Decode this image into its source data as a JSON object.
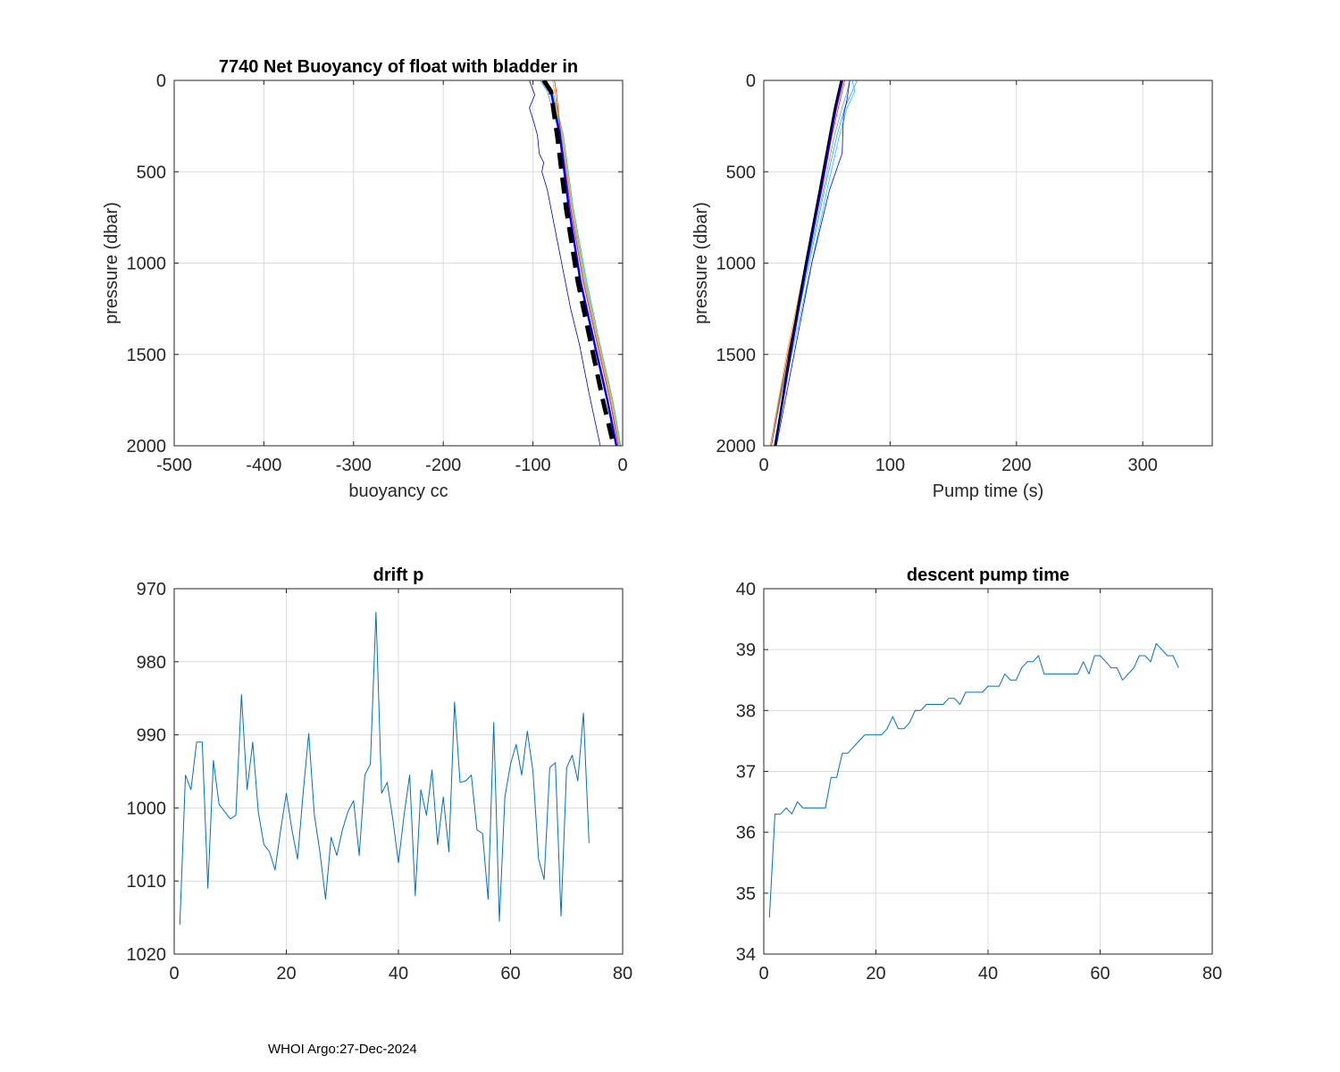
{
  "footer": "WHOI Argo:27-Dec-2024",
  "chart_data": [
    {
      "id": "buoyancy",
      "type": "line",
      "title": "7740 Net Buoyancy of float with bladder in",
      "xlabel": "buoyancy cc",
      "ylabel": "pressure (dbar)",
      "xlim": [
        -500,
        0
      ],
      "ylim": [
        0,
        2000
      ],
      "y_reversed": true,
      "xticks": [
        -500,
        -400,
        -300,
        -200,
        -100,
        0
      ],
      "yticks": [
        0,
        500,
        1000,
        1500,
        2000
      ],
      "grid": true,
      "series": [
        {
          "color": "#2e8b57",
          "width": 0.7,
          "x": [
            -452,
            -90,
            -86
          ],
          "y": [
            0,
            0,
            0
          ]
        },
        {
          "color": "#1e90ff",
          "width": 0.7,
          "x": [
            -92,
            -84,
            -70,
            -58,
            -44,
            -28,
            -14,
            -4
          ],
          "y": [
            0,
            60,
            300,
            700,
            1100,
            1450,
            1750,
            2000
          ]
        },
        {
          "color": "#00bfff",
          "width": 0.7,
          "x": [
            -88,
            -80,
            -68,
            -56,
            -42,
            -26,
            -12,
            -3
          ],
          "y": [
            0,
            60,
            300,
            700,
            1100,
            1450,
            1750,
            2000
          ]
        },
        {
          "color": "#20b2aa",
          "width": 0.7,
          "x": [
            -90,
            -78,
            -66,
            -55,
            -40,
            -25,
            -11,
            -2
          ],
          "y": [
            0,
            60,
            300,
            700,
            1100,
            1450,
            1750,
            2000
          ]
        },
        {
          "color": "#9acd32",
          "width": 0.7,
          "x": [
            -86,
            -79,
            -67,
            -56,
            -41,
            -26,
            -12,
            -3
          ],
          "y": [
            0,
            60,
            300,
            700,
            1100,
            1450,
            1750,
            2000
          ]
        },
        {
          "color": "#ff8c00",
          "width": 0.7,
          "x": [
            -78,
            -76,
            -68,
            -57,
            -43,
            -27,
            -13,
            -4
          ],
          "y": [
            0,
            60,
            300,
            700,
            1100,
            1450,
            1750,
            2000
          ]
        },
        {
          "color": "#ff0000",
          "width": 0.7,
          "x": [
            -76,
            -74,
            -69,
            -58,
            -44,
            -28,
            -14,
            -5
          ],
          "y": [
            0,
            60,
            300,
            700,
            1100,
            1450,
            1750,
            2000
          ]
        },
        {
          "color": "#0000ff",
          "width": 2.5,
          "x": [
            -86,
            -80,
            -70,
            -60,
            -47,
            -31,
            -17,
            -7
          ],
          "y": [
            0,
            60,
            300,
            700,
            1100,
            1450,
            1750,
            2000
          ]
        },
        {
          "color": "#0000cd",
          "width": 0.8,
          "x": [
            -104,
            -98,
            -104,
            -99,
            -95,
            -93,
            -88,
            -90,
            -84,
            -80,
            -72,
            -66,
            -58,
            -48,
            -38,
            -25
          ],
          "y": [
            0,
            80,
            150,
            230,
            300,
            400,
            450,
            500,
            600,
            700,
            900,
            1050,
            1250,
            1450,
            1700,
            2000
          ]
        },
        {
          "color": "#000000",
          "width": 5,
          "dash": "18,10",
          "x": [
            -88,
            -80,
            -73,
            -63,
            -50,
            -35,
            -22,
            -10
          ],
          "y": [
            0,
            60,
            300,
            700,
            1100,
            1450,
            1750,
            2000
          ]
        }
      ]
    },
    {
      "id": "pumptime",
      "type": "line",
      "title": "",
      "xlabel": "Pump time (s)",
      "ylabel": "pressure (dbar)",
      "xlim": [
        0,
        355
      ],
      "ylim": [
        0,
        2000
      ],
      "y_reversed": true,
      "xticks": [
        0,
        100,
        200,
        300
      ],
      "yticks": [
        0,
        500,
        1000,
        1500,
        2000
      ],
      "grid": true,
      "series": [
        {
          "color": "#2e8b57",
          "width": 0.8,
          "x": [
            62,
            355
          ],
          "y": [
            0,
            0
          ]
        },
        {
          "color": "#00bfff",
          "width": 0.7,
          "x": [
            70,
            72,
            66,
            60,
            50,
            38,
            22,
            8
          ],
          "y": [
            0,
            60,
            150,
            300,
            600,
            1000,
            1500,
            2000
          ]
        },
        {
          "color": "#1e90ff",
          "width": 0.7,
          "x": [
            74,
            70,
            64,
            58,
            48,
            36,
            20,
            6
          ],
          "y": [
            0,
            60,
            150,
            300,
            600,
            1000,
            1500,
            2000
          ]
        },
        {
          "color": "#20b2aa",
          "width": 0.7,
          "x": [
            68,
            66,
            62,
            56,
            47,
            35,
            19,
            5
          ],
          "y": [
            0,
            60,
            150,
            300,
            600,
            1000,
            1500,
            2000
          ]
        },
        {
          "color": "#ff8c00",
          "width": 0.7,
          "x": [
            63,
            61,
            58,
            53,
            45,
            33,
            18,
            5
          ],
          "y": [
            0,
            60,
            150,
            300,
            600,
            1000,
            1500,
            2000
          ]
        },
        {
          "color": "#ff0000",
          "width": 0.7,
          "x": [
            64,
            62,
            59,
            54,
            46,
            34,
            19,
            6
          ],
          "y": [
            0,
            60,
            150,
            300,
            600,
            1000,
            1500,
            2000
          ]
        },
        {
          "color": "#0000ff",
          "width": 0.8,
          "x": [
            68,
            66,
            63,
            62,
            52,
            38,
            24,
            10
          ],
          "y": [
            0,
            100,
            200,
            400,
            600,
            1000,
            1500,
            2000
          ]
        },
        {
          "color": "#0000cd",
          "width": 2.5,
          "x": [
            62,
            60,
            57,
            53,
            45,
            34,
            21,
            9
          ],
          "y": [
            0,
            60,
            150,
            300,
            600,
            1000,
            1500,
            2000
          ]
        },
        {
          "color": "#000000",
          "width": 1.5,
          "x": [
            61,
            59,
            56,
            52,
            44,
            33,
            20,
            9
          ],
          "y": [
            0,
            60,
            150,
            300,
            600,
            1000,
            1500,
            2000
          ]
        }
      ]
    },
    {
      "id": "driftp",
      "type": "line",
      "title": "drift p",
      "xlabel": "",
      "ylabel": "",
      "xlim": [
        0,
        80
      ],
      "ylim": [
        970,
        1020
      ],
      "y_reversed": true,
      "xticks": [
        0,
        20,
        40,
        60,
        80
      ],
      "yticks": [
        970,
        980,
        990,
        1000,
        1010,
        1020
      ],
      "grid": true,
      "series": [
        {
          "color": "#0072bd",
          "width": 1,
          "x": [
            1,
            2,
            3,
            4,
            5,
            6,
            7,
            8,
            9,
            10,
            11,
            12,
            13,
            14,
            15,
            16,
            17,
            18,
            19,
            20,
            21,
            22,
            23,
            24,
            25,
            26,
            27,
            28,
            29,
            30,
            31,
            32,
            33,
            34,
            35,
            36,
            37,
            38,
            39,
            40,
            41,
            42,
            43,
            44,
            45,
            46,
            47,
            48,
            49,
            50,
            51,
            52,
            53,
            54,
            55,
            56,
            57,
            58,
            59,
            60,
            61,
            62,
            63,
            64,
            65,
            66,
            67,
            68,
            69,
            70,
            71,
            72,
            73,
            74
          ],
          "y": [
            1016,
            995.5,
            997.5,
            991,
            991,
            1011,
            993.5,
            999.5,
            1000.5,
            1001.5,
            1001,
            984.5,
            997.5,
            991,
            1000.5,
            1005,
            1006,
            1008.5,
            1003,
            998,
            1003,
            1007,
            998,
            989.8,
            1001,
            1006,
            1012.5,
            1004,
            1006.5,
            1003,
            1000.5,
            999,
            1006.5,
            995.5,
            994,
            973.2,
            998,
            996.5,
            1001.5,
            1007.5,
            1001,
            995.5,
            1012,
            997.5,
            1001,
            994.8,
            1005,
            998.5,
            1006,
            985.5,
            996.5,
            996.3,
            995.5,
            1003,
            1003.5,
            1012.5,
            988.3,
            1015.5,
            998.5,
            994,
            991.3,
            995.5,
            989.5,
            995,
            1007,
            1009.8,
            994.5,
            993.8,
            1014.8,
            994.5,
            992.8,
            996.3,
            987,
            1004.8
          ]
        }
      ]
    },
    {
      "id": "descentpump",
      "type": "line",
      "title": "descent pump time",
      "xlabel": "",
      "ylabel": "",
      "xlim": [
        0,
        80
      ],
      "ylim": [
        34,
        40
      ],
      "y_reversed": false,
      "xticks": [
        0,
        20,
        40,
        60,
        80
      ],
      "yticks": [
        34,
        35,
        36,
        37,
        38,
        39,
        40
      ],
      "grid": true,
      "series": [
        {
          "color": "#0072bd",
          "width": 1,
          "x": [
            1,
            2,
            3,
            4,
            5,
            6,
            7,
            8,
            9,
            10,
            11,
            12,
            13,
            14,
            15,
            16,
            17,
            18,
            19,
            20,
            21,
            22,
            23,
            24,
            25,
            26,
            27,
            28,
            29,
            30,
            31,
            32,
            33,
            34,
            35,
            36,
            37,
            38,
            39,
            40,
            41,
            42,
            43,
            44,
            45,
            46,
            47,
            48,
            49,
            50,
            51,
            52,
            53,
            54,
            55,
            56,
            57,
            58,
            59,
            60,
            61,
            62,
            63,
            64,
            65,
            66,
            67,
            68,
            69,
            70,
            71,
            72,
            73,
            74
          ],
          "y": [
            34.6,
            36.3,
            36.3,
            36.4,
            36.3,
            36.5,
            36.4,
            36.4,
            36.4,
            36.4,
            36.4,
            36.9,
            36.9,
            37.3,
            37.3,
            37.4,
            37.5,
            37.6,
            37.6,
            37.6,
            37.6,
            37.7,
            37.9,
            37.7,
            37.7,
            37.8,
            38,
            38,
            38.1,
            38.1,
            38.1,
            38.1,
            38.2,
            38.2,
            38.1,
            38.3,
            38.3,
            38.3,
            38.3,
            38.4,
            38.4,
            38.4,
            38.6,
            38.5,
            38.5,
            38.7,
            38.8,
            38.8,
            38.9,
            38.6,
            38.6,
            38.6,
            38.6,
            38.6,
            38.6,
            38.6,
            38.8,
            38.6,
            38.9,
            38.9,
            38.8,
            38.7,
            38.7,
            38.5,
            38.6,
            38.7,
            38.9,
            38.9,
            38.8,
            39.1,
            39,
            38.9,
            38.9,
            38.7
          ]
        }
      ]
    }
  ]
}
